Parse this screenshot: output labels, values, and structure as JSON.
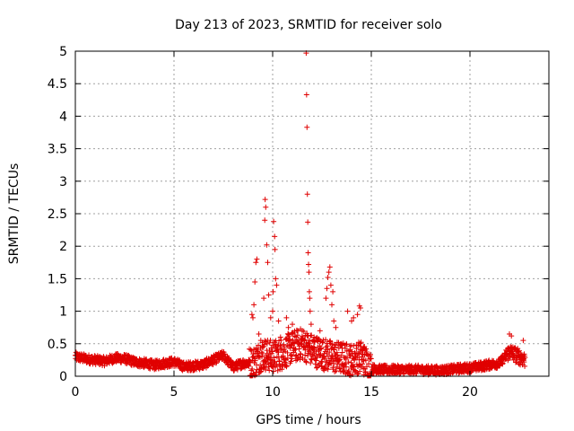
{
  "chart_data": {
    "type": "scatter",
    "title": "Day 213 of 2023, SRMTID for receiver solo",
    "xlabel": "GPS time / hours",
    "ylabel": "SRMTID / TECUs",
    "xlim": [
      0,
      24
    ],
    "ylim": [
      0,
      5
    ],
    "x_ticks": [
      0,
      5,
      10,
      15,
      20
    ],
    "y_ticks": [
      0,
      0.5,
      1,
      1.5,
      2,
      2.5,
      3,
      3.5,
      4,
      4.5,
      5
    ],
    "x_tick_labels": [
      "0",
      "5",
      "10",
      "15",
      "20"
    ],
    "y_tick_labels": [
      "0",
      "0.5",
      "1",
      "1.5",
      "2",
      "2.5",
      "3",
      "3.5",
      "4",
      "4.5",
      "5"
    ],
    "grid": true,
    "marker": "+",
    "series": [
      {
        "name": "SRMTID",
        "color": "#e00000",
        "baseline": {
          "x": [
            0,
            0.5,
            1,
            1.5,
            2,
            2.5,
            3,
            3.5,
            4,
            4.5,
            5,
            5.5,
            6,
            6.5,
            7,
            7.5,
            8,
            8.5,
            9,
            9.5,
            10,
            10.5,
            11,
            11.5,
            12,
            12.5,
            13,
            13.5,
            14,
            14.5,
            15,
            15.5,
            16,
            16.5,
            17,
            17.5,
            18,
            18.5,
            19,
            19.5,
            20,
            20.5,
            21,
            21.5,
            22,
            22.5,
            22.8
          ],
          "y": [
            0.3,
            0.27,
            0.25,
            0.23,
            0.28,
            0.27,
            0.22,
            0.2,
            0.17,
            0.2,
            0.22,
            0.15,
            0.16,
            0.18,
            0.25,
            0.32,
            0.14,
            0.2,
            0.2,
            0.35,
            0.3,
            0.35,
            0.45,
            0.5,
            0.4,
            0.35,
            0.3,
            0.28,
            0.25,
            0.3,
            0.12,
            0.1,
            0.1,
            0.1,
            0.1,
            0.1,
            0.09,
            0.09,
            0.1,
            0.12,
            0.13,
            0.15,
            0.18,
            0.2,
            0.38,
            0.3,
            0.25
          ]
        },
        "outliers": [
          {
            "x": 8.95,
            "y": 0.95
          },
          {
            "x": 9.05,
            "y": 1.1
          },
          {
            "x": 9.1,
            "y": 1.45
          },
          {
            "x": 9.15,
            "y": 1.75
          },
          {
            "x": 9.2,
            "y": 1.8
          },
          {
            "x": 9.3,
            "y": 0.65
          },
          {
            "x": 9.55,
            "y": 1.2
          },
          {
            "x": 9.6,
            "y": 2.4
          },
          {
            "x": 9.62,
            "y": 2.72
          },
          {
            "x": 9.65,
            "y": 2.6
          },
          {
            "x": 9.7,
            "y": 2.02
          },
          {
            "x": 9.75,
            "y": 1.75
          },
          {
            "x": 9.8,
            "y": 1.25
          },
          {
            "x": 9.9,
            "y": 0.9
          },
          {
            "x": 10.0,
            "y": 1.0
          },
          {
            "x": 10.02,
            "y": 1.3
          },
          {
            "x": 10.05,
            "y": 2.38
          },
          {
            "x": 10.1,
            "y": 2.15
          },
          {
            "x": 10.12,
            "y": 1.95
          },
          {
            "x": 10.15,
            "y": 1.5
          },
          {
            "x": 10.2,
            "y": 1.4
          },
          {
            "x": 10.3,
            "y": 0.85
          },
          {
            "x": 10.7,
            "y": 0.9
          },
          {
            "x": 10.8,
            "y": 0.75
          },
          {
            "x": 11.0,
            "y": 0.8
          },
          {
            "x": 11.5,
            "y": 0.7
          },
          {
            "x": 11.7,
            "y": 4.97
          },
          {
            "x": 11.72,
            "y": 4.33
          },
          {
            "x": 11.74,
            "y": 3.83
          },
          {
            "x": 11.76,
            "y": 2.8
          },
          {
            "x": 11.78,
            "y": 2.37
          },
          {
            "x": 11.8,
            "y": 1.9
          },
          {
            "x": 11.82,
            "y": 1.72
          },
          {
            "x": 11.84,
            "y": 1.6
          },
          {
            "x": 11.86,
            "y": 1.3
          },
          {
            "x": 11.88,
            "y": 1.2
          },
          {
            "x": 11.9,
            "y": 1.0
          },
          {
            "x": 11.95,
            "y": 0.8
          },
          {
            "x": 12.7,
            "y": 1.2
          },
          {
            "x": 12.75,
            "y": 1.35
          },
          {
            "x": 12.8,
            "y": 1.52
          },
          {
            "x": 12.85,
            "y": 1.6
          },
          {
            "x": 12.9,
            "y": 1.68
          },
          {
            "x": 12.95,
            "y": 1.4
          },
          {
            "x": 13.0,
            "y": 1.1
          },
          {
            "x": 13.05,
            "y": 1.3
          },
          {
            "x": 13.1,
            "y": 0.85
          },
          {
            "x": 13.2,
            "y": 0.75
          },
          {
            "x": 13.8,
            "y": 1.0
          },
          {
            "x": 14.0,
            "y": 0.85
          },
          {
            "x": 14.1,
            "y": 0.9
          },
          {
            "x": 14.3,
            "y": 0.95
          },
          {
            "x": 14.4,
            "y": 1.08
          },
          {
            "x": 14.45,
            "y": 1.05
          },
          {
            "x": 9.0,
            "y": 0.9
          },
          {
            "x": 9.4,
            "y": 0.55
          },
          {
            "x": 10.4,
            "y": 0.6
          },
          {
            "x": 12.1,
            "y": 0.6
          },
          {
            "x": 12.4,
            "y": 0.7
          },
          {
            "x": 13.5,
            "y": 0.5
          },
          {
            "x": 14.6,
            "y": 0.45
          },
          {
            "x": 22.0,
            "y": 0.65
          },
          {
            "x": 22.1,
            "y": 0.62
          },
          {
            "x": 22.7,
            "y": 0.55
          }
        ]
      }
    ]
  }
}
